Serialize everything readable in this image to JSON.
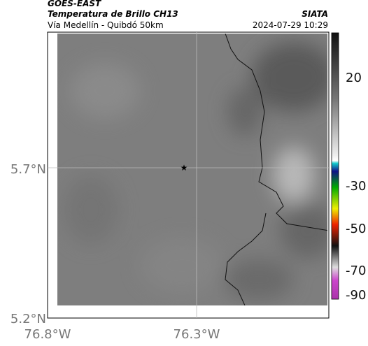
{
  "header": {
    "agency": "GOES-EAST",
    "product": "Temperatura de Brillo CH13",
    "route": "Vía Medellín - Quibdó 50km",
    "source": "SIATA",
    "timestamp": "2024-07-29 10:29"
  },
  "map": {
    "x_ticks": [
      "76.8°W",
      "76.3°W"
    ],
    "y_ticks": [
      "5.7°N",
      "5.2°N"
    ]
  },
  "colorbar": {
    "ticks": [
      20,
      -30,
      -50,
      -70,
      -90
    ]
  }
}
